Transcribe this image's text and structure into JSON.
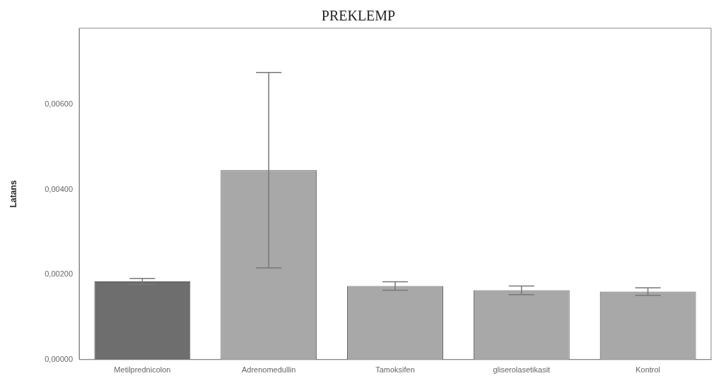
{
  "chart_data": {
    "type": "bar",
    "title": "PREKLEMP",
    "ylabel": "Latans",
    "categories": [
      "Metilprednicolon",
      "Adrenomedullin",
      "Tamoksifen",
      "gliserolasetikasit",
      "Kontrol"
    ],
    "values": [
      0.00184,
      0.00446,
      0.00173,
      0.00163,
      0.0016
    ],
    "errors": [
      7e-05,
      0.0023,
      0.0001,
      0.0001,
      9e-05
    ],
    "colors": [
      "#6e6e6e",
      "#a8a8a8",
      "#a8a8a8",
      "#a8a8a8",
      "#a8a8a8"
    ],
    "ylim": [
      0,
      0.0078
    ],
    "yticks": [
      {
        "value": 0,
        "label": "0,00000"
      },
      {
        "value": 0.002,
        "label": "0,00200"
      },
      {
        "value": 0.004,
        "label": "0,00400"
      },
      {
        "value": 0.006,
        "label": "0,00600"
      }
    ],
    "grid": false,
    "legend": false
  }
}
